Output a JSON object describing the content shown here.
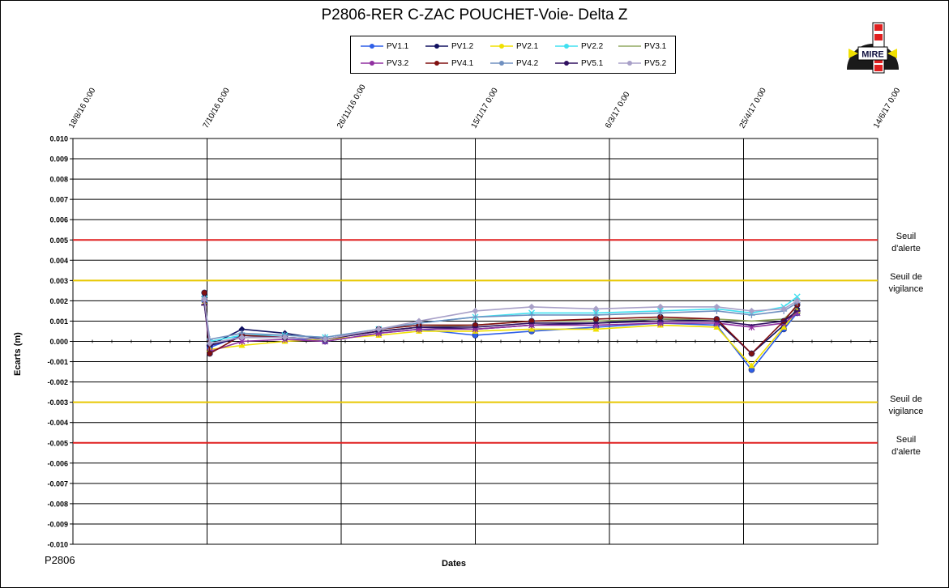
{
  "header": {
    "title": "P2806-RER  C-ZAC  POUCHET-Voie-  Delta Z"
  },
  "footer": {
    "label": "P2806"
  },
  "logo": {
    "text": "MIRE",
    "icon": "mire-logo-icon"
  },
  "thresholds": [
    {
      "value": 0.005,
      "label": "Seuil d'alerte",
      "color": "#e02020"
    },
    {
      "value": 0.003,
      "label": "Seuil de vigilance",
      "color": "#e8c800"
    },
    {
      "value": -0.003,
      "label": "Seuil de vigilance",
      "color": "#e8c800"
    },
    {
      "value": -0.005,
      "label": "Seuil d'alerte",
      "color": "#e02020"
    }
  ],
  "chart_data": {
    "type": "line",
    "title": "P2806-RER  C-ZAC  POUCHET-Voie-  Delta Z",
    "xlabel": "Dates",
    "ylabel": "Ecarts (m)",
    "ylim": [
      -0.01,
      0.01
    ],
    "xlim": [
      "2016-08-18",
      "2017-06-14"
    ],
    "x_tick_labels": [
      "18/8/16 0:00",
      "7/10/16 0:00",
      "26/11/16 0:00",
      "15/1/17 0:00",
      "6/3/17 0:00",
      "25/4/17 0:00",
      "14/6/17 0:00"
    ],
    "y_tick_labels": [
      "0.010",
      "0.009",
      "0.008",
      "0.007",
      "0.006",
      "0.005",
      "0.004",
      "0.003",
      "0.002",
      "0.001",
      "0.000",
      "-0.001",
      "-0.002",
      "-0.003",
      "-0.004",
      "-0.005",
      "-0.006",
      "-0.007",
      "-0.008",
      "-0.009",
      "-0.010"
    ],
    "grid": true,
    "legend_position": "top",
    "series": [
      {
        "name": "PV1.1",
        "color": "#2f5fe8",
        "marker": "circle",
        "x": [
          "2016-10-06",
          "2016-10-08",
          "2016-10-20",
          "2016-11-05",
          "2016-11-20",
          "2016-12-10",
          "2016-12-25",
          "2017-01-15",
          "2017-02-05",
          "2017-03-01",
          "2017-03-25",
          "2017-04-15",
          "2017-04-28",
          "2017-05-10",
          "2017-05-15"
        ],
        "y": [
          0.002,
          -0.0003,
          0.0003,
          0.0002,
          0.0,
          0.0004,
          0.0006,
          0.0003,
          0.0005,
          0.0007,
          0.0009,
          0.0008,
          -0.0014,
          0.0006,
          0.0014
        ]
      },
      {
        "name": "PV1.2",
        "color": "#101060",
        "marker": "diamond",
        "x": [
          "2016-10-06",
          "2016-10-08",
          "2016-10-20",
          "2016-11-05",
          "2016-11-20",
          "2016-12-10",
          "2016-12-25",
          "2017-01-15",
          "2017-02-05",
          "2017-03-01",
          "2017-03-25",
          "2017-04-15",
          "2017-04-28",
          "2017-05-10",
          "2017-05-15"
        ],
        "y": [
          0.0022,
          -0.0002,
          0.0006,
          0.0004,
          0.0001,
          0.0005,
          0.0007,
          0.0006,
          0.0008,
          0.0009,
          0.0011,
          0.001,
          -0.0006,
          0.0008,
          0.0016
        ]
      },
      {
        "name": "PV2.1",
        "color": "#f0e000",
        "marker": "triangle",
        "x": [
          "2016-10-06",
          "2016-10-08",
          "2016-10-20",
          "2016-11-05",
          "2016-11-20",
          "2016-12-10",
          "2016-12-25",
          "2017-01-15",
          "2017-02-05",
          "2017-03-01",
          "2017-03-25",
          "2017-04-15",
          "2017-04-28",
          "2017-05-10",
          "2017-05-15"
        ],
        "y": [
          0.0019,
          -0.0004,
          -0.0002,
          0.0,
          0.0001,
          0.0003,
          0.0005,
          0.0005,
          0.0006,
          0.0006,
          0.0008,
          0.0007,
          -0.0012,
          0.0007,
          0.0015
        ]
      },
      {
        "name": "PV2.2",
        "color": "#40e0f0",
        "marker": "x",
        "x": [
          "2016-10-06",
          "2016-10-08",
          "2016-10-20",
          "2016-11-05",
          "2016-11-20",
          "2016-12-10",
          "2016-12-25",
          "2017-01-15",
          "2017-02-05",
          "2017-03-01",
          "2017-03-25",
          "2017-04-15",
          "2017-04-28",
          "2017-05-10",
          "2017-05-15"
        ],
        "y": [
          0.0021,
          0.0,
          0.0003,
          0.0003,
          0.0002,
          0.0006,
          0.0009,
          0.0012,
          0.0014,
          0.0014,
          0.0015,
          0.0016,
          0.0014,
          0.0017,
          0.0022
        ]
      },
      {
        "name": "PV3.1",
        "color": "#90a860",
        "marker": "none",
        "x": [
          "2016-10-06",
          "2016-10-08",
          "2016-10-20",
          "2016-11-05",
          "2016-11-20",
          "2016-12-10",
          "2016-12-25",
          "2017-01-15",
          "2017-02-05",
          "2017-03-01",
          "2017-03-25",
          "2017-04-15",
          "2017-04-28",
          "2017-05-10",
          "2017-05-15"
        ],
        "y": [
          0.002,
          -0.0001,
          0.0002,
          0.0002,
          0.0001,
          0.0005,
          0.0007,
          0.0008,
          0.001,
          0.001,
          0.0011,
          0.0011,
          0.001,
          0.0011,
          0.0017
        ]
      },
      {
        "name": "PV3.2",
        "color": "#9030a0",
        "marker": "star",
        "x": [
          "2016-10-06",
          "2016-10-08",
          "2016-10-20",
          "2016-11-05",
          "2016-11-20",
          "2016-12-10",
          "2016-12-25",
          "2017-01-15",
          "2017-02-05",
          "2017-03-01",
          "2017-03-25",
          "2017-04-15",
          "2017-04-28",
          "2017-05-10",
          "2017-05-15"
        ],
        "y": [
          0.0019,
          -0.0005,
          0.0,
          0.0001,
          0.0,
          0.0004,
          0.0006,
          0.0006,
          0.0008,
          0.0008,
          0.0009,
          0.0009,
          0.0007,
          0.0009,
          0.0014
        ]
      },
      {
        "name": "PV4.1",
        "color": "#801010",
        "marker": "circle",
        "x": [
          "2016-10-06",
          "2016-10-08",
          "2016-10-20",
          "2016-11-05",
          "2016-11-20",
          "2016-12-10",
          "2016-12-25",
          "2017-01-15",
          "2017-02-05",
          "2017-03-01",
          "2017-03-25",
          "2017-04-15",
          "2017-04-28",
          "2017-05-10",
          "2017-05-15"
        ],
        "y": [
          0.0024,
          -0.0006,
          0.0003,
          0.0002,
          0.0001,
          0.0006,
          0.0008,
          0.0008,
          0.001,
          0.0011,
          0.0012,
          0.0011,
          -0.0006,
          0.001,
          0.0018
        ]
      },
      {
        "name": "PV4.2",
        "color": "#7090c0",
        "marker": "plus",
        "x": [
          "2016-10-06",
          "2016-10-08",
          "2016-10-20",
          "2016-11-05",
          "2016-11-20",
          "2016-12-10",
          "2016-12-25",
          "2017-01-15",
          "2017-02-05",
          "2017-03-01",
          "2017-03-25",
          "2017-04-15",
          "2017-04-28",
          "2017-05-10",
          "2017-05-15"
        ],
        "y": [
          0.002,
          0.0001,
          0.0004,
          0.0003,
          0.0002,
          0.0006,
          0.0009,
          0.0012,
          0.0013,
          0.0013,
          0.0014,
          0.0015,
          0.0013,
          0.0015,
          0.0019
        ]
      },
      {
        "name": "PV5.1",
        "color": "#301060",
        "marker": "dash",
        "x": [
          "2016-10-06",
          "2016-10-08",
          "2016-10-20",
          "2016-11-05",
          "2016-11-20",
          "2016-12-10",
          "2016-12-25",
          "2017-01-15",
          "2017-02-05",
          "2017-03-01",
          "2017-03-25",
          "2017-04-15",
          "2017-04-28",
          "2017-05-10",
          "2017-05-15"
        ],
        "y": [
          0.0018,
          -0.0002,
          0.0002,
          0.0002,
          0.0001,
          0.0005,
          0.0007,
          0.0007,
          0.0009,
          0.0009,
          0.001,
          0.001,
          0.0008,
          0.001,
          0.0015
        ]
      },
      {
        "name": "PV5.2",
        "color": "#a8a0c8",
        "marker": "diamond",
        "x": [
          "2016-10-06",
          "2016-10-08",
          "2016-10-20",
          "2016-11-05",
          "2016-11-20",
          "2016-12-10",
          "2016-12-25",
          "2017-01-15",
          "2017-02-05",
          "2017-03-01",
          "2017-03-25",
          "2017-04-15",
          "2017-04-28",
          "2017-05-10",
          "2017-05-15"
        ],
        "y": [
          0.0021,
          -0.0001,
          0.0002,
          0.0002,
          0.0001,
          0.0006,
          0.001,
          0.0015,
          0.0017,
          0.0016,
          0.0017,
          0.0017,
          0.0015,
          0.0016,
          0.002
        ]
      }
    ]
  }
}
